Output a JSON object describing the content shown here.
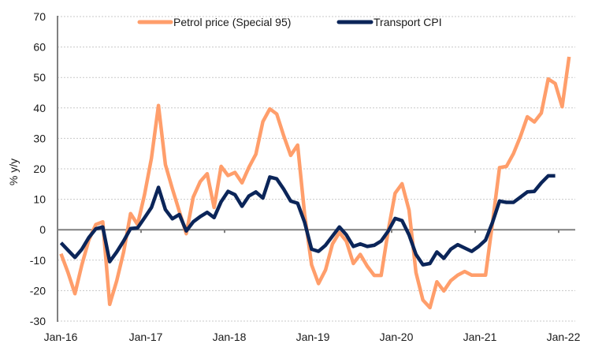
{
  "chart_data": {
    "type": "line",
    "title": "",
    "xlabel": "",
    "ylabel": "% y/y",
    "ylim": [
      -30,
      70
    ],
    "yticks": [
      -30,
      -20,
      -10,
      0,
      10,
      20,
      30,
      40,
      50,
      60,
      70
    ],
    "xtick_labels": [
      "Jan-16",
      "Jan-17",
      "Jan-18",
      "Jan-19",
      "Jan-20",
      "Jan-21",
      "Jan-22"
    ],
    "x_start": "Jan-16",
    "x_frequency": "monthly",
    "grid": true,
    "legend_position": "top",
    "series": [
      {
        "name": "Petrol price (Special 95)",
        "color": "#FF9E6B",
        "values": [
          -7.9,
          -14,
          -21,
          -11.5,
          -3.4,
          1.7,
          2.6,
          -24.5,
          -16.8,
          -7.3,
          5.3,
          1.7,
          11.5,
          23.5,
          40.8,
          21.4,
          13.5,
          6,
          -1.3,
          10.7,
          15.8,
          18.4,
          7.3,
          20.8,
          17.8,
          18.8,
          15.4,
          20.5,
          24.8,
          35.5,
          39.7,
          38,
          30.8,
          24.4,
          27.8,
          5,
          -11.5,
          -17.7,
          -13.2,
          -4.7,
          -0.9,
          -3.8,
          -11.1,
          -8.1,
          -12,
          -15,
          -15,
          -0.4,
          12,
          15.1,
          6.4,
          -14.1,
          -23.1,
          -25.6,
          -17.1,
          -20.1,
          -16.7,
          -14.9,
          -13.7,
          -14.9,
          -14.9,
          -14.9,
          2.5,
          20.4,
          20.8,
          25,
          30.6,
          37.1,
          35.4,
          38.3,
          49.5,
          48,
          40.4,
          56.8
        ]
      },
      {
        "name": "Transport CPI",
        "color": "#0B2559",
        "values": [
          -4.3,
          -6.7,
          -9.1,
          -6.4,
          -2.6,
          0.3,
          0.9,
          -10.5,
          -7.3,
          -3.7,
          0.4,
          0.6,
          3.9,
          7.3,
          13.9,
          6.6,
          3.6,
          5,
          -0.4,
          2.6,
          4.3,
          5.7,
          4,
          9.2,
          12.6,
          11.5,
          7.7,
          11.1,
          12.4,
          10.4,
          17.3,
          16.7,
          13.3,
          9.4,
          8.7,
          2.4,
          -6.4,
          -7.1,
          -5.1,
          -2.1,
          0.9,
          -1.7,
          -5.5,
          -4.7,
          -5.5,
          -5.1,
          -3.7,
          -0.5,
          3.7,
          3,
          -1.7,
          -8.1,
          -11.5,
          -11.1,
          -7.3,
          -9.4,
          -6.4,
          -4.9,
          -6,
          -7.1,
          -5.5,
          -3.4,
          2.5,
          9.4,
          9,
          9,
          10.7,
          12.4,
          12.6,
          15.4,
          17.7,
          17.7
        ]
      }
    ]
  }
}
